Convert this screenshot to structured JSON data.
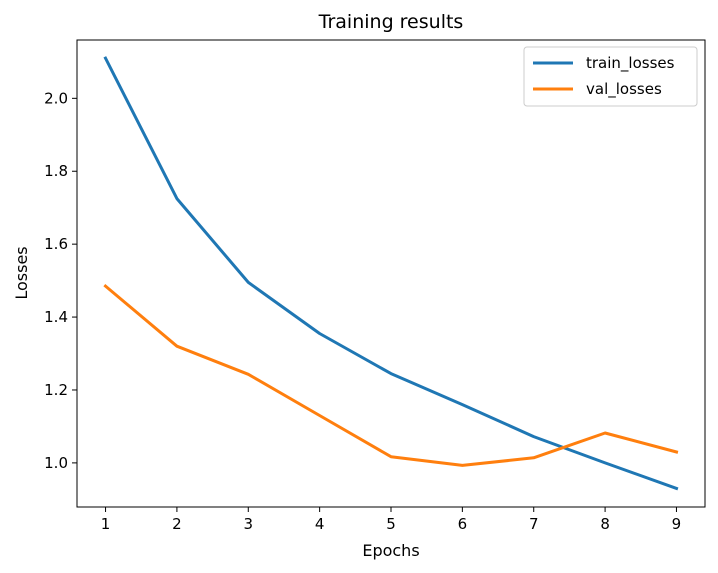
{
  "chart_data": {
    "type": "line",
    "title": "Training results",
    "xlabel": "Epochs",
    "ylabel": "Losses",
    "x": [
      1,
      2,
      3,
      4,
      5,
      6,
      7,
      8,
      9
    ],
    "xlim": [
      0.6,
      9.4
    ],
    "ylim": [
      0.879,
      2.16
    ],
    "xticks": [
      1,
      2,
      3,
      4,
      5,
      6,
      7,
      8,
      9
    ],
    "yticks": [
      1.0,
      1.2,
      1.4,
      1.6,
      1.8,
      2.0
    ],
    "ytick_labels": [
      "1.0",
      "1.2",
      "1.4",
      "1.6",
      "1.8",
      "2.0"
    ],
    "grid": false,
    "legend_position": "top-right",
    "series": [
      {
        "name": "train_losses",
        "color": "#1f77b4",
        "values": [
          2.11,
          1.725,
          1.495,
          1.355,
          1.245,
          1.16,
          1.072,
          1.0,
          0.93
        ]
      },
      {
        "name": "val_losses",
        "color": "#ff7f0e",
        "values": [
          1.485,
          1.32,
          1.243,
          1.13,
          1.017,
          0.993,
          1.014,
          1.082,
          1.03
        ]
      }
    ]
  }
}
